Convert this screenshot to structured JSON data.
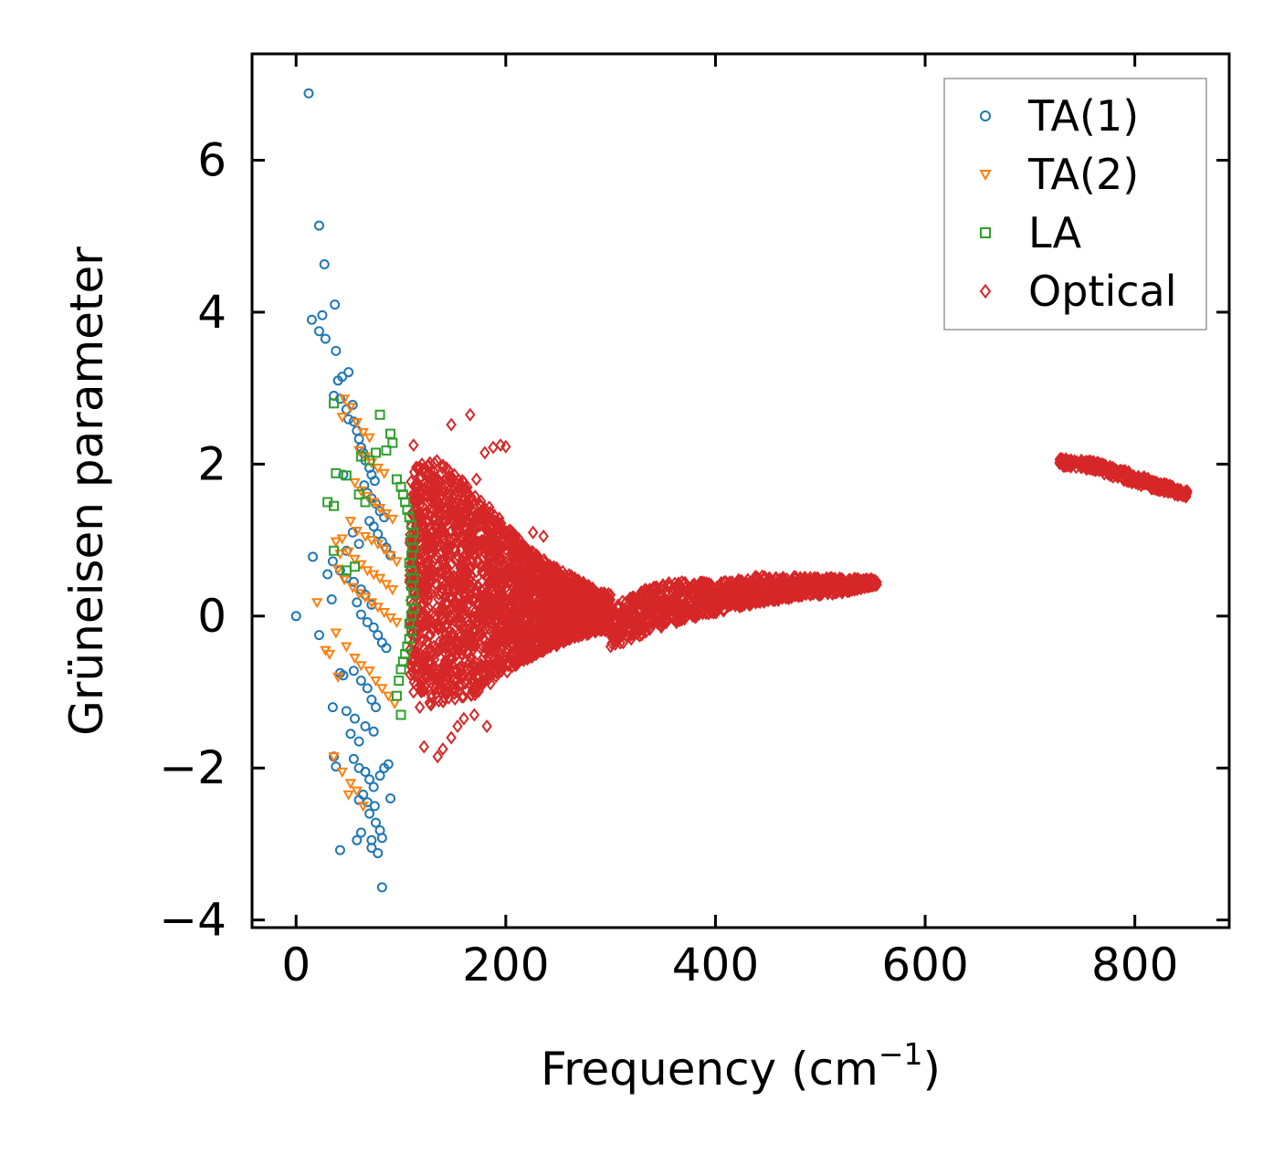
{
  "chart_data": {
    "type": "scatter",
    "title": "",
    "xlabel": "Frequency (cm",
    "xlabel_sup": "−1",
    "xlabel_close": ")",
    "ylabel": "Grüneisen parameter",
    "xlim": [
      -42,
      890
    ],
    "ylim": [
      -4.1,
      7.4
    ],
    "x_ticks": [
      0,
      200,
      400,
      600,
      800
    ],
    "x_tick_labels": [
      "0",
      "200",
      "400",
      "600",
      "800"
    ],
    "y_ticks": [
      -4,
      -2,
      0,
      2,
      4,
      6
    ],
    "y_tick_labels": [
      "−4",
      "−2",
      "0",
      "2",
      "4",
      "6"
    ],
    "grid": false,
    "legend_position": "top-right",
    "series": [
      {
        "name": "TA(1)",
        "color": "#1f77b4",
        "marker": "circle",
        "points": [
          [
            12,
            6.88
          ],
          [
            22,
            5.14
          ],
          [
            27,
            4.63
          ],
          [
            15,
            3.9
          ],
          [
            25,
            3.96
          ],
          [
            37,
            4.1
          ],
          [
            22,
            3.75
          ],
          [
            28,
            3.65
          ],
          [
            38,
            3.49
          ],
          [
            40,
            3.1
          ],
          [
            44,
            3.15
          ],
          [
            50,
            3.21
          ],
          [
            36,
            2.9
          ],
          [
            42,
            2.86
          ],
          [
            48,
            2.72
          ],
          [
            54,
            2.78
          ],
          [
            50,
            2.59
          ],
          [
            55,
            2.56
          ],
          [
            58,
            2.44
          ],
          [
            60,
            2.33
          ],
          [
            62,
            2.22
          ],
          [
            64,
            2.15
          ],
          [
            66,
            2.05
          ],
          [
            70,
            1.95
          ],
          [
            72,
            1.86
          ],
          [
            75,
            1.78
          ],
          [
            45,
            1.86
          ],
          [
            65,
            1.72
          ],
          [
            68,
            1.62
          ],
          [
            72,
            1.55
          ],
          [
            76,
            1.48
          ],
          [
            80,
            1.38
          ],
          [
            84,
            1.3
          ],
          [
            70,
            1.25
          ],
          [
            74,
            1.18
          ],
          [
            78,
            1.08
          ],
          [
            82,
            0.98
          ],
          [
            86,
            0.9
          ],
          [
            90,
            0.8
          ],
          [
            54,
            1.1
          ],
          [
            60,
            0.95
          ],
          [
            48,
            0.86
          ],
          [
            35,
            0.72
          ],
          [
            42,
            0.6
          ],
          [
            48,
            0.5
          ],
          [
            55,
            0.45
          ],
          [
            62,
            0.35
          ],
          [
            58,
            0.18
          ],
          [
            66,
            0.28
          ],
          [
            72,
            0.15
          ],
          [
            34,
            0.22
          ],
          [
            30,
            0.55
          ],
          [
            16,
            0.78
          ],
          [
            62,
            0.02
          ],
          [
            68,
            -0.08
          ],
          [
            74,
            -0.15
          ],
          [
            78,
            -0.25
          ],
          [
            82,
            -0.35
          ],
          [
            86,
            -0.42
          ],
          [
            0,
            0.0
          ],
          [
            22,
            -0.25
          ],
          [
            42,
            -0.75
          ],
          [
            45,
            -0.78
          ],
          [
            55,
            -0.72
          ],
          [
            62,
            -0.85
          ],
          [
            68,
            -0.95
          ],
          [
            72,
            -1.1
          ],
          [
            76,
            -1.2
          ],
          [
            35,
            -1.2
          ],
          [
            48,
            -1.25
          ],
          [
            56,
            -1.35
          ],
          [
            66,
            -1.45
          ],
          [
            74,
            -1.52
          ],
          [
            52,
            -1.55
          ],
          [
            60,
            -1.65
          ],
          [
            36,
            -1.85
          ],
          [
            55,
            -1.88
          ],
          [
            60,
            -2.0
          ],
          [
            66,
            -2.05
          ],
          [
            70,
            -2.15
          ],
          [
            74,
            -2.25
          ],
          [
            80,
            -2.1
          ],
          [
            84,
            -2.0
          ],
          [
            88,
            -1.95
          ],
          [
            38,
            -1.98
          ],
          [
            64,
            -2.35
          ],
          [
            60,
            -2.42
          ],
          [
            68,
            -2.45
          ],
          [
            75,
            -2.5
          ],
          [
            90,
            -2.4
          ],
          [
            70,
            -2.6
          ],
          [
            76,
            -2.72
          ],
          [
            80,
            -2.82
          ],
          [
            72,
            -2.95
          ],
          [
            58,
            -2.95
          ],
          [
            62,
            -2.85
          ],
          [
            82,
            -2.92
          ],
          [
            42,
            -3.08
          ],
          [
            72,
            -3.05
          ],
          [
            78,
            -3.12
          ],
          [
            82,
            -3.57
          ]
        ]
      },
      {
        "name": "TA(2)",
        "color": "#ff7f0e",
        "marker": "triangle-down",
        "points": [
          [
            46,
            2.86
          ],
          [
            52,
            2.75
          ],
          [
            44,
            2.62
          ],
          [
            58,
            2.55
          ],
          [
            64,
            2.42
          ],
          [
            70,
            2.35
          ],
          [
            60,
            2.18
          ],
          [
            66,
            2.1
          ],
          [
            72,
            2.02
          ],
          [
            78,
            1.95
          ],
          [
            84,
            1.88
          ],
          [
            56,
            1.76
          ],
          [
            62,
            1.65
          ],
          [
            68,
            1.58
          ],
          [
            74,
            1.5
          ],
          [
            80,
            1.42
          ],
          [
            86,
            1.35
          ],
          [
            92,
            1.28
          ],
          [
            52,
            1.25
          ],
          [
            58,
            1.12
          ],
          [
            66,
            1.05
          ],
          [
            72,
            1.0
          ],
          [
            78,
            0.95
          ],
          [
            84,
            0.88
          ],
          [
            90,
            0.8
          ],
          [
            96,
            0.72
          ],
          [
            44,
            1.02
          ],
          [
            38,
            0.98
          ],
          [
            50,
            0.85
          ],
          [
            42,
            0.82
          ],
          [
            56,
            0.75
          ],
          [
            62,
            0.68
          ],
          [
            68,
            0.6
          ],
          [
            74,
            0.55
          ],
          [
            80,
            0.5
          ],
          [
            86,
            0.42
          ],
          [
            92,
            0.35
          ],
          [
            40,
            0.62
          ],
          [
            46,
            0.48
          ],
          [
            54,
            0.38
          ],
          [
            60,
            0.3
          ],
          [
            66,
            0.25
          ],
          [
            72,
            0.18
          ],
          [
            78,
            0.12
          ],
          [
            84,
            0.05
          ],
          [
            90,
            -0.02
          ],
          [
            96,
            -0.08
          ],
          [
            20,
            0.18
          ],
          [
            38,
            -0.22
          ],
          [
            32,
            -0.5
          ],
          [
            48,
            -0.4
          ],
          [
            56,
            -0.55
          ],
          [
            62,
            -0.65
          ],
          [
            70,
            -0.72
          ],
          [
            76,
            -0.85
          ],
          [
            82,
            -0.95
          ],
          [
            88,
            -1.05
          ],
          [
            94,
            -1.15
          ],
          [
            28,
            -0.45
          ],
          [
            40,
            -0.8
          ],
          [
            36,
            -1.85
          ],
          [
            44,
            -2.05
          ],
          [
            52,
            -2.2
          ],
          [
            58,
            -2.3
          ],
          [
            50,
            -2.35
          ],
          [
            64,
            -2.5
          ]
        ]
      },
      {
        "name": "LA",
        "color": "#2ca02c",
        "marker": "square",
        "points": [
          [
            36,
            2.8
          ],
          [
            80,
            2.65
          ],
          [
            90,
            2.4
          ],
          [
            92,
            2.28
          ],
          [
            86,
            2.18
          ],
          [
            76,
            2.15
          ],
          [
            70,
            2.05
          ],
          [
            62,
            2.1
          ],
          [
            38,
            1.88
          ],
          [
            48,
            1.85
          ],
          [
            96,
            1.8
          ],
          [
            100,
            1.7
          ],
          [
            102,
            1.6
          ],
          [
            104,
            1.5
          ],
          [
            106,
            1.4
          ],
          [
            108,
            1.3
          ],
          [
            110,
            1.2
          ],
          [
            112,
            1.1
          ],
          [
            110,
            1.0
          ],
          [
            112,
            0.9
          ],
          [
            110,
            0.8
          ],
          [
            108,
            0.7
          ],
          [
            110,
            0.6
          ],
          [
            112,
            0.5
          ],
          [
            110,
            0.4
          ],
          [
            112,
            0.3
          ],
          [
            110,
            0.2
          ],
          [
            112,
            0.1
          ],
          [
            110,
            0.0
          ],
          [
            108,
            -0.1
          ],
          [
            110,
            -0.2
          ],
          [
            108,
            -0.3
          ],
          [
            106,
            -0.4
          ],
          [
            104,
            -0.5
          ],
          [
            102,
            -0.6
          ],
          [
            100,
            -0.7
          ],
          [
            98,
            -0.85
          ],
          [
            96,
            -1.05
          ],
          [
            100,
            -1.3
          ],
          [
            30,
            1.5
          ],
          [
            36,
            1.45
          ],
          [
            60,
            1.6
          ],
          [
            66,
            1.5
          ],
          [
            36,
            0.86
          ],
          [
            56,
            0.65
          ],
          [
            48,
            0.6
          ]
        ]
      },
      {
        "name": "Optical",
        "color": "#d62728",
        "marker": "diamond",
        "points": [
          [
            148,
            2.52
          ],
          [
            166,
            2.65
          ],
          [
            112,
            2.25
          ],
          [
            120,
            2.0
          ],
          [
            195,
            2.25
          ],
          [
            188,
            2.22
          ],
          [
            180,
            2.15
          ],
          [
            172,
            1.8
          ],
          [
            152,
            1.75
          ],
          [
            135,
            1.7
          ],
          [
            200,
            2.23
          ],
          [
            112,
            -1.0
          ],
          [
            118,
            -1.2
          ],
          [
            122,
            -1.72
          ],
          [
            135,
            -1.85
          ],
          [
            140,
            -1.75
          ],
          [
            148,
            -1.6
          ],
          [
            154,
            -1.45
          ],
          [
            160,
            -1.35
          ],
          [
            170,
            -1.3
          ],
          [
            182,
            -1.45
          ],
          [
            236,
            1.05
          ],
          [
            226,
            1.1
          ],
          [
            205,
            0.9
          ],
          [
            300,
            -0.4
          ],
          [
            312,
            -0.35
          ]
        ]
      }
    ],
    "optical_bands": {
      "main": {
        "x": [
          108,
          300
        ],
        "center": [
          [
            108,
            0.55
          ],
          [
            130,
            0.45
          ],
          [
            150,
            0.4
          ],
          [
            170,
            0.3
          ],
          [
            190,
            0.25
          ],
          [
            210,
            0.2
          ],
          [
            230,
            0.15
          ],
          [
            250,
            0.12
          ],
          [
            270,
            0.1
          ],
          [
            290,
            0.06
          ]
        ],
        "halfwidth": [
          [
            108,
            1.35
          ],
          [
            130,
            1.65
          ],
          [
            150,
            1.5
          ],
          [
            170,
            1.35
          ],
          [
            190,
            1.1
          ],
          [
            210,
            0.85
          ],
          [
            230,
            0.65
          ],
          [
            250,
            0.5
          ],
          [
            270,
            0.38
          ],
          [
            290,
            0.25
          ]
        ]
      },
      "middle": {
        "x": [
          300,
          555
        ],
        "center": [
          [
            300,
            -0.15
          ],
          [
            330,
            0.05
          ],
          [
            360,
            0.18
          ],
          [
            400,
            0.24
          ],
          [
            440,
            0.35
          ],
          [
            480,
            0.38
          ],
          [
            520,
            0.4
          ],
          [
            555,
            0.45
          ]
        ],
        "halfwidth": [
          [
            300,
            0.25
          ],
          [
            330,
            0.3
          ],
          [
            360,
            0.28
          ],
          [
            400,
            0.2
          ],
          [
            440,
            0.18
          ],
          [
            480,
            0.14
          ],
          [
            520,
            0.1
          ],
          [
            555,
            0.04
          ]
        ]
      },
      "high": {
        "x": [
          728,
          850
        ],
        "center": [
          [
            728,
            2.03
          ],
          [
            760,
            1.98
          ],
          [
            790,
            1.85
          ],
          [
            820,
            1.72
          ],
          [
            850,
            1.6
          ]
        ],
        "halfwidth": [
          [
            728,
            0.05
          ],
          [
            760,
            0.06
          ],
          [
            790,
            0.07
          ],
          [
            820,
            0.06
          ],
          [
            850,
            0.05
          ]
        ]
      }
    }
  }
}
